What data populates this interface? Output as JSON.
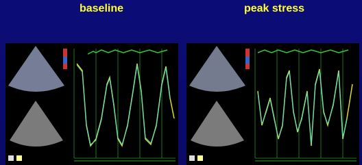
{
  "panels": [
    {
      "title": "baseline"
    },
    {
      "title": "peak stress"
    }
  ]
}
